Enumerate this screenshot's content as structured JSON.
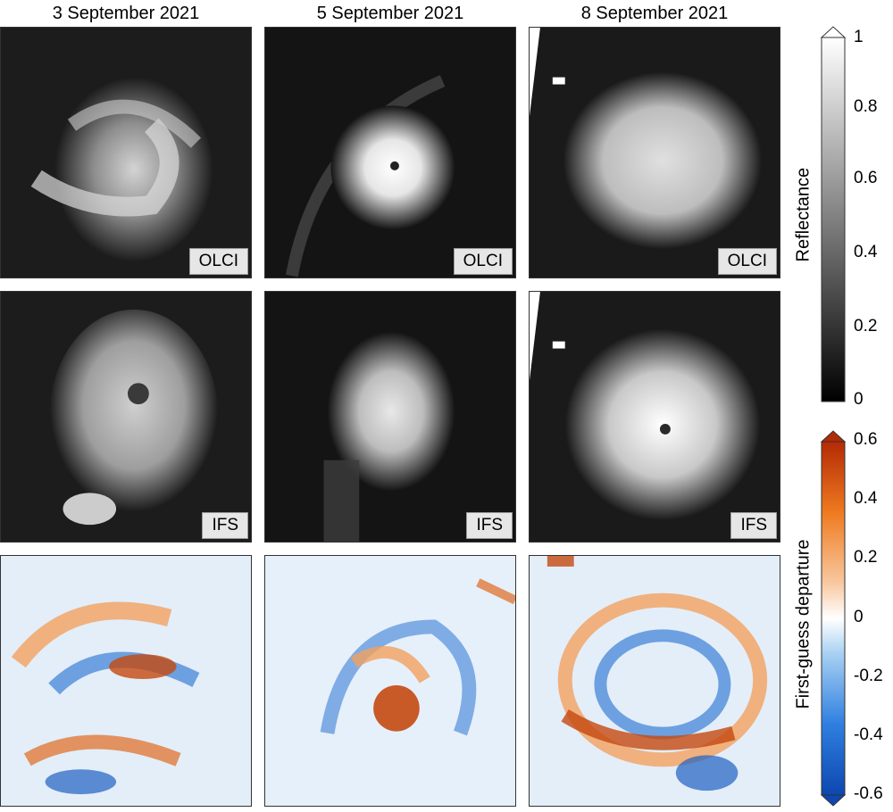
{
  "columns": [
    {
      "title": "3 September 2021"
    },
    {
      "title": "5 September 2021"
    },
    {
      "title": "8 September 2021"
    }
  ],
  "row_labels": [
    "OLCI",
    "IFS"
  ],
  "colorbars": {
    "reflectance": {
      "label": "Reflectance",
      "ticks": [
        "1",
        "0.8",
        "0.6",
        "0.4",
        "0.2",
        "0"
      ],
      "min": 0,
      "max": 1
    },
    "departure": {
      "label": "First-guess departure",
      "ticks": [
        "0.6",
        "0.4",
        "0.2",
        "0",
        "-0.2",
        "-0.4",
        "-0.6"
      ],
      "min": -0.6,
      "max": 0.6
    }
  },
  "colors": {
    "grayscale": "black-to-white",
    "positive": "#c43c0a",
    "negative": "#1f5fc0",
    "zero": "#ffffff"
  }
}
